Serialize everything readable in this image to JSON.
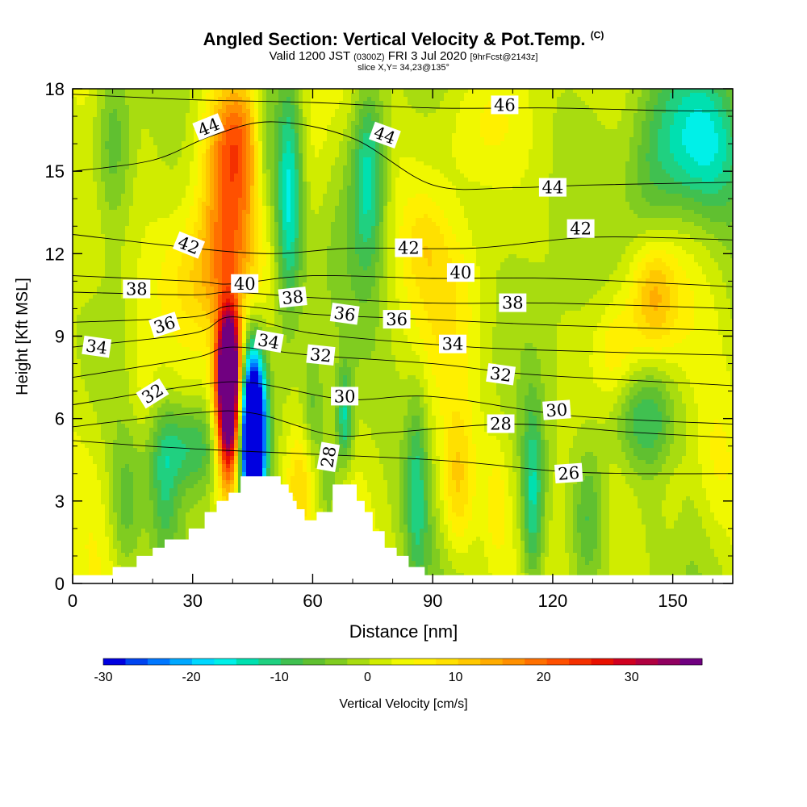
{
  "header": {
    "title": "Angled Section: Vertical Velocity & Pot.Temp.",
    "copyright": "(C)",
    "valid_main": "Valid 1200 JST",
    "valid_utc": "(0300Z)",
    "valid_date": "FRI 3 Jul 2020",
    "forecast": "[9hrFcst@2143z]",
    "slice": "slice X,Y= 34,23@135°"
  },
  "colorbar": {
    "title": "Vertical Velocity [cm/s]",
    "tick_labels": [
      "-30",
      "-20",
      "-10",
      "0",
      "10",
      "20",
      "30"
    ],
    "colors": [
      "#0000e0",
      "#0044f0",
      "#0077ff",
      "#00a8ff",
      "#00d8ff",
      "#00f0e8",
      "#00e0b0",
      "#20d080",
      "#40c050",
      "#60c030",
      "#80cc20",
      "#a8dc10",
      "#d0ec00",
      "#f0f800",
      "#fff000",
      "#ffe000",
      "#ffc800",
      "#ffac00",
      "#ff9000",
      "#ff7000",
      "#ff5000",
      "#f43000",
      "#e81000",
      "#d00020",
      "#b00040",
      "#900060",
      "#700080"
    ]
  },
  "chart_data": {
    "type": "heatmap",
    "xlabel": "Distance [nm]",
    "ylabel": "Height [Kft MSL]",
    "xlim": [
      0,
      165
    ],
    "ylim": [
      0,
      18
    ],
    "x_ticks": [
      0,
      30,
      60,
      90,
      120,
      150
    ],
    "y_ticks": [
      0,
      3,
      6,
      9,
      12,
      15,
      18
    ],
    "x_tick_labels": [
      "0",
      "30",
      "60",
      "90",
      "120",
      "150"
    ],
    "y_tick_labels": [
      "0",
      "3",
      "6",
      "9",
      "12",
      "15",
      "18"
    ],
    "colorbar_range": [
      -30,
      38
    ],
    "terrain": [
      [
        0,
        0.3
      ],
      [
        10,
        0.3
      ],
      [
        10,
        0.6
      ],
      [
        16,
        0.6
      ],
      [
        16,
        1.0
      ],
      [
        20,
        1.0
      ],
      [
        20,
        1.3
      ],
      [
        23,
        1.3
      ],
      [
        23,
        1.6
      ],
      [
        29,
        1.6
      ],
      [
        29,
        2.0
      ],
      [
        33,
        2.0
      ],
      [
        33,
        2.6
      ],
      [
        36,
        2.6
      ],
      [
        36,
        3.0
      ],
      [
        39,
        3.0
      ],
      [
        39,
        3.3
      ],
      [
        42,
        3.3
      ],
      [
        42,
        3.9
      ],
      [
        52,
        3.9
      ],
      [
        52,
        3.6
      ],
      [
        54,
        3.6
      ],
      [
        54,
        3.3
      ],
      [
        55,
        3.3
      ],
      [
        55,
        3.0
      ],
      [
        56,
        3.0
      ],
      [
        56,
        2.7
      ],
      [
        58,
        2.7
      ],
      [
        58,
        2.3
      ],
      [
        61,
        2.3
      ],
      [
        61,
        2.6
      ],
      [
        65,
        2.6
      ],
      [
        65,
        3.6
      ],
      [
        71,
        3.6
      ],
      [
        71,
        3.0
      ],
      [
        73,
        3.0
      ],
      [
        73,
        2.6
      ],
      [
        75,
        2.6
      ],
      [
        75,
        1.9
      ],
      [
        78,
        1.9
      ],
      [
        78,
        1.3
      ],
      [
        81,
        1.3
      ],
      [
        81,
        1.0
      ],
      [
        84,
        1.0
      ],
      [
        84,
        0.6
      ],
      [
        88,
        0.6
      ],
      [
        88,
        0.3
      ],
      [
        165,
        0.3
      ]
    ],
    "features": [
      {
        "x": 39,
        "y": 6.5,
        "sx": 2.2,
        "sy": 2.0,
        "amp": 50
      },
      {
        "x": 39,
        "y": 8.4,
        "sx": 2.0,
        "sy": 1.2,
        "amp": 20
      },
      {
        "x": 45,
        "y": 5.5,
        "sx": 2.2,
        "sy": 2.0,
        "amp": -55
      },
      {
        "x": 39,
        "y": 13.8,
        "sx": 5.0,
        "sy": 2.5,
        "amp": 16
      },
      {
        "x": 41,
        "y": 16.5,
        "sx": 4.5,
        "sy": 1.5,
        "amp": 10
      },
      {
        "x": 34,
        "y": 11.2,
        "sx": 8.0,
        "sy": 1.5,
        "amp": 7
      },
      {
        "x": 54,
        "y": 14.0,
        "sx": 2.5,
        "sy": 3.0,
        "amp": -18
      },
      {
        "x": 48,
        "y": 16.0,
        "sx": 2.0,
        "sy": 2.0,
        "amp": -8
      },
      {
        "x": 60,
        "y": 15.8,
        "sx": 4.0,
        "sy": 2.5,
        "amp": 5
      },
      {
        "x": 74,
        "y": 15.0,
        "sx": 3.0,
        "sy": 2.5,
        "amp": -15
      },
      {
        "x": 60,
        "y": 6.0,
        "sx": 2.0,
        "sy": 1.8,
        "amp": -8
      },
      {
        "x": 57,
        "y": 3.6,
        "sx": 3.0,
        "sy": 1.5,
        "amp": 10
      },
      {
        "x": 68,
        "y": 6.0,
        "sx": 1.5,
        "sy": 1.3,
        "amp": -14
      },
      {
        "x": 64,
        "y": 3.5,
        "sx": 2.0,
        "sy": 1.5,
        "amp": -8
      },
      {
        "x": 30,
        "y": 5.0,
        "sx": 6.0,
        "sy": 1.2,
        "amp": -12
      },
      {
        "x": 23,
        "y": 3.5,
        "sx": 2.5,
        "sy": 2.0,
        "amp": -8
      },
      {
        "x": 13,
        "y": 2.5,
        "sx": 3.0,
        "sy": 2.0,
        "amp": -8
      },
      {
        "x": 10,
        "y": 16.0,
        "sx": 3.5,
        "sy": 2.5,
        "amp": -10
      },
      {
        "x": 5,
        "y": 12.5,
        "sx": 6.0,
        "sy": 2.5,
        "amp": 6
      },
      {
        "x": 17,
        "y": 7.5,
        "sx": 3.0,
        "sy": 2.0,
        "amp": 4
      },
      {
        "x": 88,
        "y": 12.5,
        "sx": 4.0,
        "sy": 1.2,
        "amp": 4
      },
      {
        "x": 96,
        "y": 3.5,
        "sx": 3.0,
        "sy": 2.0,
        "amp": 10
      },
      {
        "x": 106,
        "y": 3.0,
        "sx": 2.0,
        "sy": 1.5,
        "amp": 5
      },
      {
        "x": 86,
        "y": 3.5,
        "sx": 2.0,
        "sy": 2.5,
        "amp": -10
      },
      {
        "x": 95,
        "y": 10.5,
        "sx": 6.0,
        "sy": 2.0,
        "amp": 4
      },
      {
        "x": 115,
        "y": 3.0,
        "sx": 2.0,
        "sy": 2.5,
        "amp": -14
      },
      {
        "x": 129,
        "y": 2.5,
        "sx": 3.0,
        "sy": 2.0,
        "amp": -10
      },
      {
        "x": 136,
        "y": 8.5,
        "sx": 4.0,
        "sy": 1.5,
        "amp": 7
      },
      {
        "x": 145,
        "y": 10.5,
        "sx": 4.0,
        "sy": 1.5,
        "amp": 12
      },
      {
        "x": 143,
        "y": 6.0,
        "sx": 6.0,
        "sy": 1.3,
        "amp": -10
      },
      {
        "x": 157,
        "y": 16.0,
        "sx": 8.0,
        "sy": 2.0,
        "amp": -16
      },
      {
        "x": 145,
        "y": 14.5,
        "sx": 5.0,
        "sy": 2.5,
        "amp": -8
      },
      {
        "x": 100,
        "y": 16.5,
        "sx": 8.0,
        "sy": 1.5,
        "amp": 4
      },
      {
        "x": 160,
        "y": 4.0,
        "sx": 4.0,
        "sy": 2.0,
        "amp": 4
      },
      {
        "x": 150,
        "y": 3.5,
        "sx": 3.0,
        "sy": 2.0,
        "amp": 4
      }
    ],
    "theta_contours": [
      {
        "value": 26,
        "points": [
          [
            0,
            5.2
          ],
          [
            30,
            4.9
          ],
          [
            90,
            4.5
          ],
          [
            120,
            4.1
          ],
          [
            140,
            4.0
          ],
          [
            165,
            4.0
          ]
        ]
      },
      {
        "value": 28,
        "points": [
          [
            0,
            5.7
          ],
          [
            30,
            6.2
          ],
          [
            45,
            6.2
          ],
          [
            65,
            5.4
          ],
          [
            80,
            5.5
          ],
          [
            110,
            5.8
          ],
          [
            140,
            5.5
          ],
          [
            165,
            5.3
          ]
        ]
      },
      {
        "value": 30,
        "points": [
          [
            0,
            6.5
          ],
          [
            30,
            7.2
          ],
          [
            45,
            7.3
          ],
          [
            68,
            6.7
          ],
          [
            90,
            6.8
          ],
          [
            125,
            6.1
          ],
          [
            165,
            5.8
          ]
        ]
      },
      {
        "value": 32,
        "points": [
          [
            0,
            7.5
          ],
          [
            30,
            8.2
          ],
          [
            40,
            8.6
          ],
          [
            60,
            8.3
          ],
          [
            90,
            8.0
          ],
          [
            115,
            7.6
          ],
          [
            165,
            7.2
          ]
        ]
      },
      {
        "value": 34,
        "points": [
          [
            0,
            8.6
          ],
          [
            30,
            9.1
          ],
          [
            40,
            9.7
          ],
          [
            60,
            9.1
          ],
          [
            90,
            8.7
          ],
          [
            115,
            8.5
          ],
          [
            165,
            8.3
          ]
        ]
      },
      {
        "value": 36,
        "points": [
          [
            0,
            9.5
          ],
          [
            30,
            9.7
          ],
          [
            40,
            10.1
          ],
          [
            60,
            9.8
          ],
          [
            90,
            9.6
          ],
          [
            120,
            9.4
          ],
          [
            165,
            9.2
          ]
        ]
      },
      {
        "value": 38,
        "points": [
          [
            0,
            10.6
          ],
          [
            30,
            10.5
          ],
          [
            40,
            10.6
          ],
          [
            60,
            10.4
          ],
          [
            90,
            10.2
          ],
          [
            120,
            10.2
          ],
          [
            165,
            10.0
          ]
        ]
      },
      {
        "value": 40,
        "points": [
          [
            0,
            11.2
          ],
          [
            30,
            11.0
          ],
          [
            40,
            10.9
          ],
          [
            60,
            11.2
          ],
          [
            90,
            11.1
          ],
          [
            120,
            11.1
          ],
          [
            165,
            10.8
          ]
        ]
      },
      {
        "value": 42,
        "points": [
          [
            0,
            12.7
          ],
          [
            30,
            12.2
          ],
          [
            50,
            12.0
          ],
          [
            70,
            12.2
          ],
          [
            100,
            12.2
          ],
          [
            130,
            12.6
          ],
          [
            165,
            12.5
          ]
        ]
      },
      {
        "value": 44,
        "points": [
          [
            0,
            15.0
          ],
          [
            20,
            15.4
          ],
          [
            35,
            16.3
          ],
          [
            50,
            16.8
          ],
          [
            70,
            16.2
          ],
          [
            90,
            14.5
          ],
          [
            110,
            14.4
          ],
          [
            130,
            14.5
          ],
          [
            165,
            14.6
          ]
        ]
      },
      {
        "value": 46,
        "points": [
          [
            0,
            17.8
          ],
          [
            30,
            17.6
          ],
          [
            60,
            17.5
          ],
          [
            90,
            17.3
          ],
          [
            120,
            17.3
          ],
          [
            150,
            17.2
          ],
          [
            165,
            17.2
          ]
        ]
      }
    ],
    "contour_labels": [
      {
        "text": "44",
        "x": 34,
        "y": 16.6,
        "angle": -22
      },
      {
        "text": "44",
        "x": 78,
        "y": 16.3,
        "angle": 20
      },
      {
        "text": "46",
        "x": 108,
        "y": 17.4,
        "angle": 0
      },
      {
        "text": "44",
        "x": 120,
        "y": 14.4,
        "angle": 0
      },
      {
        "text": "42",
        "x": 127,
        "y": 12.9,
        "angle": 0
      },
      {
        "text": "42",
        "x": 29,
        "y": 12.3,
        "angle": 22
      },
      {
        "text": "42",
        "x": 84,
        "y": 12.2,
        "angle": 0
      },
      {
        "text": "40",
        "x": 97,
        "y": 11.3,
        "angle": 0
      },
      {
        "text": "40",
        "x": 43,
        "y": 10.9,
        "angle": 0
      },
      {
        "text": "38",
        "x": 16,
        "y": 10.7,
        "angle": 0
      },
      {
        "text": "38",
        "x": 55,
        "y": 10.4,
        "angle": -6
      },
      {
        "text": "38",
        "x": 110,
        "y": 10.2,
        "angle": 0
      },
      {
        "text": "36",
        "x": 23,
        "y": 9.4,
        "angle": -18
      },
      {
        "text": "36",
        "x": 68,
        "y": 9.8,
        "angle": 8
      },
      {
        "text": "36",
        "x": 81,
        "y": 9.6,
        "angle": 0
      },
      {
        "text": "34",
        "x": 6,
        "y": 8.6,
        "angle": 8
      },
      {
        "text": "34",
        "x": 49,
        "y": 8.8,
        "angle": 10
      },
      {
        "text": "34",
        "x": 95,
        "y": 8.7,
        "angle": 0
      },
      {
        "text": "32",
        "x": 20,
        "y": 6.9,
        "angle": -32
      },
      {
        "text": "32",
        "x": 62,
        "y": 8.3,
        "angle": 6
      },
      {
        "text": "32",
        "x": 107,
        "y": 7.6,
        "angle": 8
      },
      {
        "text": "30",
        "x": 68,
        "y": 6.8,
        "angle": 0
      },
      {
        "text": "30",
        "x": 121,
        "y": 6.3,
        "angle": -4
      },
      {
        "text": "28",
        "x": 64,
        "y": 4.6,
        "angle": -80
      },
      {
        "text": "28",
        "x": 107,
        "y": 5.8,
        "angle": 0
      },
      {
        "text": "26",
        "x": 124,
        "y": 4.0,
        "angle": -4
      }
    ]
  }
}
